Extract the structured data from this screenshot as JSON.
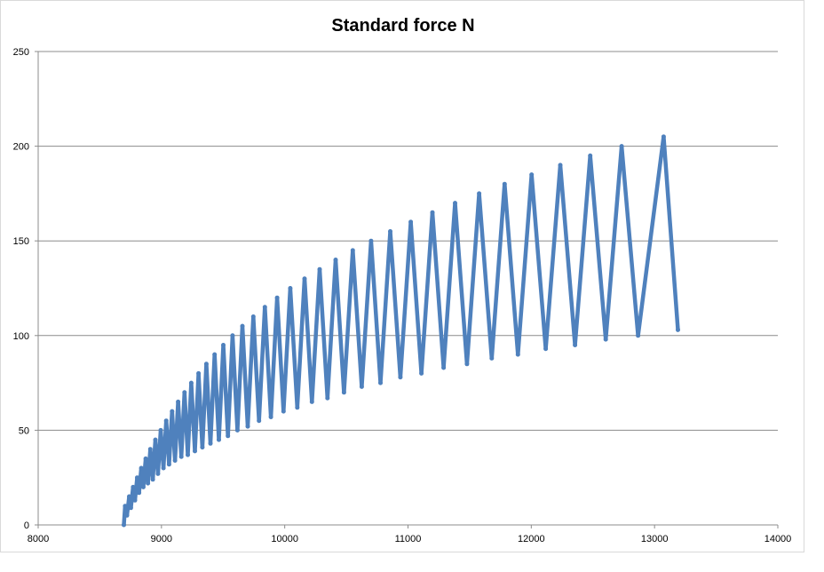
{
  "chart_data": {
    "type": "line",
    "title": "Standard force N",
    "xlabel": "",
    "ylabel": "",
    "xlim": [
      8000,
      14000
    ],
    "ylim": [
      0,
      250
    ],
    "x_ticks": [
      "8000",
      "9000",
      "10000",
      "11000",
      "12000",
      "13000",
      "14000"
    ],
    "y_ticks": [
      "0",
      "50",
      "100",
      "150",
      "200",
      "250"
    ],
    "grid": "horizontal",
    "legend": "none",
    "series": [
      {
        "color": "#4f81bd",
        "points": [
          [
            8695,
            0
          ],
          [
            8705,
            10
          ],
          [
            8720,
            5
          ],
          [
            8738,
            15
          ],
          [
            8752,
            9
          ],
          [
            8770,
            20
          ],
          [
            8785,
            13
          ],
          [
            8803,
            25
          ],
          [
            8818,
            17
          ],
          [
            8836,
            30
          ],
          [
            8853,
            20
          ],
          [
            8872,
            35
          ],
          [
            8890,
            22
          ],
          [
            8910,
            40
          ],
          [
            8930,
            24
          ],
          [
            8951,
            45
          ],
          [
            8972,
            27
          ],
          [
            8994,
            50
          ],
          [
            9016,
            30
          ],
          [
            9039,
            55
          ],
          [
            9062,
            32
          ],
          [
            9086,
            60
          ],
          [
            9110,
            34
          ],
          [
            9135,
            65
          ],
          [
            9161,
            36
          ],
          [
            9187,
            70
          ],
          [
            9214,
            37
          ],
          [
            9242,
            75
          ],
          [
            9271,
            39
          ],
          [
            9301,
            80
          ],
          [
            9332,
            41
          ],
          [
            9364,
            85
          ],
          [
            9397,
            43
          ],
          [
            9431,
            90
          ],
          [
            9466,
            45
          ],
          [
            9502,
            95
          ],
          [
            9539,
            47
          ],
          [
            9577,
            100
          ],
          [
            9616,
            50
          ],
          [
            9657,
            105
          ],
          [
            9700,
            52
          ],
          [
            9745,
            110
          ],
          [
            9791,
            55
          ],
          [
            9839,
            115
          ],
          [
            9888,
            57
          ],
          [
            9938,
            120
          ],
          [
            9990,
            60
          ],
          [
            10045,
            125
          ],
          [
            10102,
            62
          ],
          [
            10161,
            130
          ],
          [
            10221,
            65
          ],
          [
            10283,
            135
          ],
          [
            10347,
            67
          ],
          [
            10413,
            140
          ],
          [
            10481,
            70
          ],
          [
            10552,
            145
          ],
          [
            10625,
            73
          ],
          [
            10700,
            150
          ],
          [
            10777,
            75
          ],
          [
            10856,
            155
          ],
          [
            10938,
            78
          ],
          [
            11022,
            160
          ],
          [
            11109,
            80
          ],
          [
            11198,
            165
          ],
          [
            11289,
            83
          ],
          [
            11382,
            170
          ],
          [
            11478,
            85
          ],
          [
            11577,
            175
          ],
          [
            11679,
            88
          ],
          [
            11784,
            180
          ],
          [
            11892,
            90
          ],
          [
            12003,
            185
          ],
          [
            12117,
            93
          ],
          [
            12235,
            190
          ],
          [
            12355,
            95
          ],
          [
            12478,
            195
          ],
          [
            12604,
            98
          ],
          [
            12733,
            200
          ],
          [
            12866,
            100
          ],
          [
            13074,
            205
          ],
          [
            13190,
            103
          ]
        ]
      }
    ]
  }
}
